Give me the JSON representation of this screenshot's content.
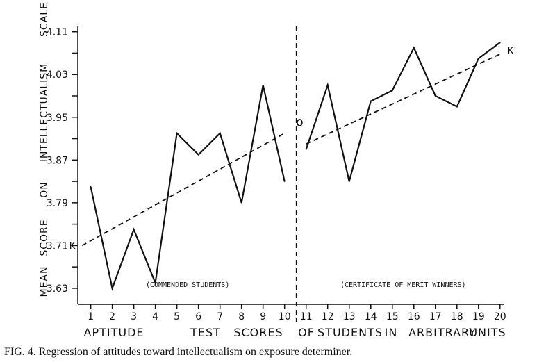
{
  "chart_data": {
    "type": "line",
    "ylabel_words": [
      "MEAN",
      "SCORE",
      "ON",
      "INTELLECTUALISM",
      "SCALE"
    ],
    "xlabel_words": [
      "APTITUDE",
      "TEST",
      "SCORES",
      "OF",
      "STUDENTS",
      "IN",
      "ARBITRARY",
      "UNITS"
    ],
    "caption": "FIG. 4. Regression of attitudes toward intellectualism on exposure determiner.",
    "y_tick_labels": [
      "3.63",
      "3.71",
      "3.79",
      "3.87",
      "3.95",
      "4.03",
      "4.11"
    ],
    "y_ticks": [
      3.63,
      3.71,
      3.79,
      3.87,
      3.95,
      4.03,
      4.11
    ],
    "ylim": [
      3.6,
      4.12
    ],
    "x_ticks": [
      1,
      2,
      3,
      4,
      5,
      6,
      7,
      8,
      9,
      10,
      11,
      12,
      13,
      14,
      15,
      16,
      17,
      18,
      19,
      20
    ],
    "xlim": [
      0.4,
      20.2
    ],
    "divider_x": 10.55,
    "groups": [
      {
        "label": "(COMMENDED STUDENTS)",
        "range": [
          1,
          10
        ]
      },
      {
        "label": "(CERTIFICATE OF MERIT WINNERS)",
        "range": [
          11,
          20
        ]
      }
    ],
    "series": [
      {
        "x": [
          1,
          2,
          3,
          4,
          5,
          6,
          7,
          8,
          9,
          10
        ],
        "y": [
          3.82,
          3.63,
          3.74,
          3.64,
          3.92,
          3.88,
          3.92,
          3.79,
          4.01,
          3.83
        ]
      },
      {
        "x": [
          11,
          12,
          13,
          14,
          15,
          16,
          17,
          18,
          19,
          20
        ],
        "y": [
          3.89,
          4.01,
          3.83,
          3.98,
          4.0,
          4.08,
          3.99,
          3.97,
          4.06,
          4.09
        ]
      }
    ],
    "trend_lines": [
      {
        "label": "K",
        "x": [
          0.6,
          10
        ],
        "y": [
          3.71,
          3.92
        ]
      },
      {
        "label": "K'",
        "x": [
          11,
          20.1
        ],
        "y": [
          3.9,
          4.07
        ]
      }
    ],
    "outlier_marker": {
      "label": "O",
      "x": 10.7,
      "y": 3.94
    }
  }
}
